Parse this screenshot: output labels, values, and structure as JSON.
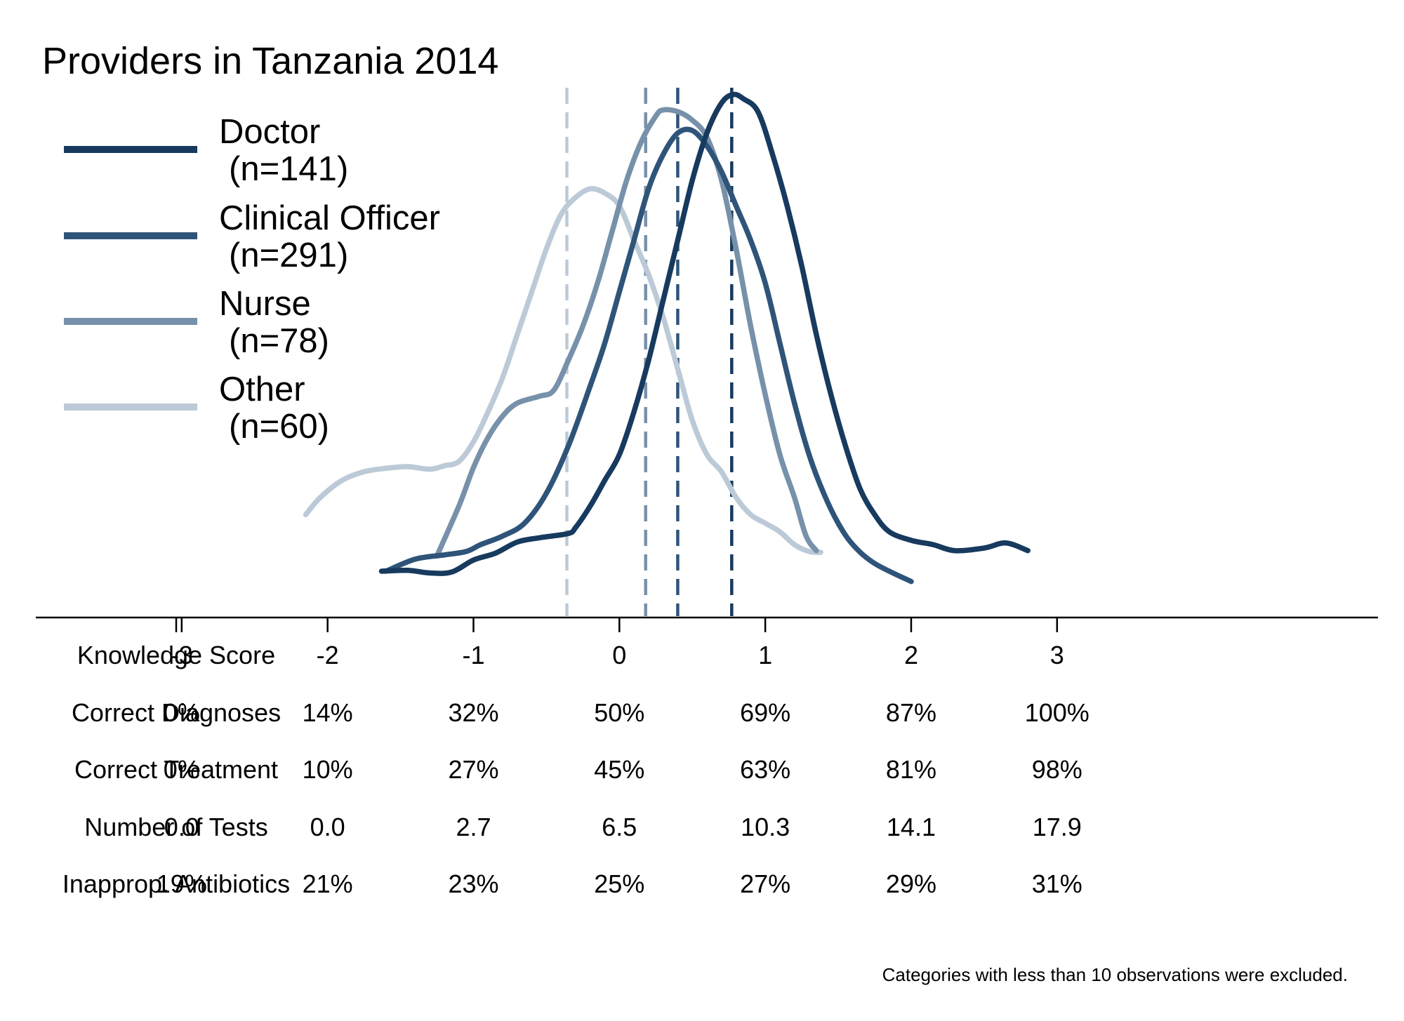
{
  "chart_data": {
    "type": "line",
    "title": "Providers in Tanzania 2014",
    "note": "Categories with less than 10 observations were excluded.",
    "xlim": [
      -4.0,
      5.2
    ],
    "ylim": [
      0,
      0.64
    ],
    "x_ticks": [
      -3,
      -2,
      -1,
      0,
      1,
      2,
      3
    ],
    "colors": {
      "doctor": "#173a5e",
      "clinical": "#2f5479",
      "nurse": "#7891aa",
      "other": "#bccad8"
    },
    "legend": [
      {
        "key": "doctor",
        "label": "Doctor",
        "n": "(n=141)",
        "color": "#173a5e"
      },
      {
        "key": "clinical",
        "label": "Clinical Officer",
        "n": "(n=291)",
        "color": "#2f5479"
      },
      {
        "key": "nurse",
        "label": "Nurse",
        "n": "(n=78)",
        "color": "#7891aa"
      },
      {
        "key": "other",
        "label": "Other",
        "n": "(n=60)",
        "color": "#bccad8"
      }
    ],
    "means": [
      {
        "key": "other",
        "x": -0.36,
        "color": "#bccad8"
      },
      {
        "key": "nurse",
        "x": 0.18,
        "color": "#7891aa"
      },
      {
        "key": "clinical",
        "x": 0.4,
        "color": "#2f5479"
      },
      {
        "key": "doctor",
        "x": 0.77,
        "color": "#173a5e"
      }
    ],
    "series": [
      {
        "key": "doctor",
        "color": "#173a5e",
        "points": [
          [
            -1.63,
            0.054
          ],
          [
            -1.45,
            0.055
          ],
          [
            -1.3,
            0.052
          ],
          [
            -1.15,
            0.053
          ],
          [
            -1.0,
            0.067
          ],
          [
            -0.85,
            0.075
          ],
          [
            -0.7,
            0.088
          ],
          [
            -0.55,
            0.093
          ],
          [
            -0.35,
            0.098
          ],
          [
            -0.3,
            0.105
          ],
          [
            -0.2,
            0.13
          ],
          [
            -0.1,
            0.16
          ],
          [
            0.0,
            0.19
          ],
          [
            0.1,
            0.24
          ],
          [
            0.2,
            0.3
          ],
          [
            0.3,
            0.37
          ],
          [
            0.4,
            0.44
          ],
          [
            0.5,
            0.51
          ],
          [
            0.6,
            0.565
          ],
          [
            0.7,
            0.6
          ],
          [
            0.78,
            0.61
          ],
          [
            0.85,
            0.605
          ],
          [
            0.95,
            0.59
          ],
          [
            1.05,
            0.54
          ],
          [
            1.15,
            0.48
          ],
          [
            1.25,
            0.41
          ],
          [
            1.35,
            0.33
          ],
          [
            1.45,
            0.26
          ],
          [
            1.55,
            0.2
          ],
          [
            1.65,
            0.15
          ],
          [
            1.75,
            0.12
          ],
          [
            1.85,
            0.1
          ],
          [
            2.0,
            0.09
          ],
          [
            2.15,
            0.085
          ],
          [
            2.3,
            0.078
          ],
          [
            2.5,
            0.081
          ],
          [
            2.65,
            0.087
          ],
          [
            2.8,
            0.078
          ]
        ]
      },
      {
        "key": "clinical",
        "color": "#2f5479",
        "points": [
          [
            -1.6,
            0.054
          ],
          [
            -1.4,
            0.068
          ],
          [
            -1.2,
            0.073
          ],
          [
            -1.05,
            0.077
          ],
          [
            -0.95,
            0.085
          ],
          [
            -0.8,
            0.095
          ],
          [
            -0.65,
            0.11
          ],
          [
            -0.5,
            0.145
          ],
          [
            -0.35,
            0.2
          ],
          [
            -0.2,
            0.27
          ],
          [
            -0.1,
            0.32
          ],
          [
            0.0,
            0.38
          ],
          [
            0.1,
            0.44
          ],
          [
            0.2,
            0.5
          ],
          [
            0.3,
            0.54
          ],
          [
            0.4,
            0.565
          ],
          [
            0.5,
            0.568
          ],
          [
            0.6,
            0.55
          ],
          [
            0.7,
            0.52
          ],
          [
            0.8,
            0.48
          ],
          [
            0.9,
            0.44
          ],
          [
            1.0,
            0.39
          ],
          [
            1.1,
            0.32
          ],
          [
            1.2,
            0.25
          ],
          [
            1.3,
            0.19
          ],
          [
            1.4,
            0.145
          ],
          [
            1.5,
            0.11
          ],
          [
            1.6,
            0.085
          ],
          [
            1.75,
            0.063
          ],
          [
            2.0,
            0.042
          ]
        ]
      },
      {
        "key": "nurse",
        "color": "#7891aa",
        "points": [
          [
            -1.25,
            0.072
          ],
          [
            -1.1,
            0.13
          ],
          [
            -1.0,
            0.175
          ],
          [
            -0.9,
            0.21
          ],
          [
            -0.8,
            0.235
          ],
          [
            -0.7,
            0.25
          ],
          [
            -0.55,
            0.258
          ],
          [
            -0.45,
            0.265
          ],
          [
            -0.35,
            0.3
          ],
          [
            -0.25,
            0.34
          ],
          [
            -0.15,
            0.39
          ],
          [
            -0.05,
            0.45
          ],
          [
            0.05,
            0.51
          ],
          [
            0.15,
            0.555
          ],
          [
            0.25,
            0.585
          ],
          [
            0.3,
            0.592
          ],
          [
            0.4,
            0.59
          ],
          [
            0.5,
            0.58
          ],
          [
            0.6,
            0.56
          ],
          [
            0.7,
            0.51
          ],
          [
            0.8,
            0.43
          ],
          [
            0.9,
            0.34
          ],
          [
            1.0,
            0.26
          ],
          [
            1.1,
            0.19
          ],
          [
            1.2,
            0.14
          ],
          [
            1.28,
            0.095
          ],
          [
            1.35,
            0.078
          ]
        ]
      },
      {
        "key": "other",
        "color": "#bccad8",
        "points": [
          [
            -2.15,
            0.12
          ],
          [
            -2.05,
            0.14
          ],
          [
            -1.9,
            0.16
          ],
          [
            -1.75,
            0.17
          ],
          [
            -1.6,
            0.174
          ],
          [
            -1.45,
            0.176
          ],
          [
            -1.3,
            0.173
          ],
          [
            -1.2,
            0.177
          ],
          [
            -1.1,
            0.182
          ],
          [
            -1.0,
            0.205
          ],
          [
            -0.9,
            0.24
          ],
          [
            -0.8,
            0.28
          ],
          [
            -0.7,
            0.33
          ],
          [
            -0.6,
            0.38
          ],
          [
            -0.5,
            0.43
          ],
          [
            -0.4,
            0.47
          ],
          [
            -0.3,
            0.49
          ],
          [
            -0.2,
            0.5
          ],
          [
            -0.1,
            0.495
          ],
          [
            0.0,
            0.48
          ],
          [
            0.1,
            0.44
          ],
          [
            0.2,
            0.4
          ],
          [
            0.3,
            0.35
          ],
          [
            0.4,
            0.29
          ],
          [
            0.5,
            0.23
          ],
          [
            0.6,
            0.19
          ],
          [
            0.7,
            0.17
          ],
          [
            0.8,
            0.14
          ],
          [
            0.9,
            0.12
          ],
          [
            1.0,
            0.11
          ],
          [
            1.1,
            0.1
          ],
          [
            1.2,
            0.085
          ],
          [
            1.3,
            0.077
          ],
          [
            1.38,
            0.076
          ]
        ]
      }
    ],
    "table": {
      "header": "Knowledge Score",
      "columns": [
        "-3",
        "-2",
        "-1",
        "0",
        "1",
        "2",
        "3"
      ],
      "rows": [
        {
          "label": "Correct Diagnoses",
          "values": [
            "0%",
            "14%",
            "32%",
            "50%",
            "69%",
            "87%",
            "100%"
          ]
        },
        {
          "label": "Correct Treatment",
          "values": [
            "0%",
            "10%",
            "27%",
            "45%",
            "63%",
            "81%",
            "98%"
          ]
        },
        {
          "label": "Number of Tests",
          "values": [
            "0.0",
            "0.0",
            "2.7",
            "6.5",
            "10.3",
            "14.1",
            "17.9"
          ]
        },
        {
          "label": "Inapprop. Antibiotics",
          "values": [
            "19%",
            "21%",
            "23%",
            "25%",
            "27%",
            "29%",
            "31%"
          ]
        }
      ]
    }
  }
}
